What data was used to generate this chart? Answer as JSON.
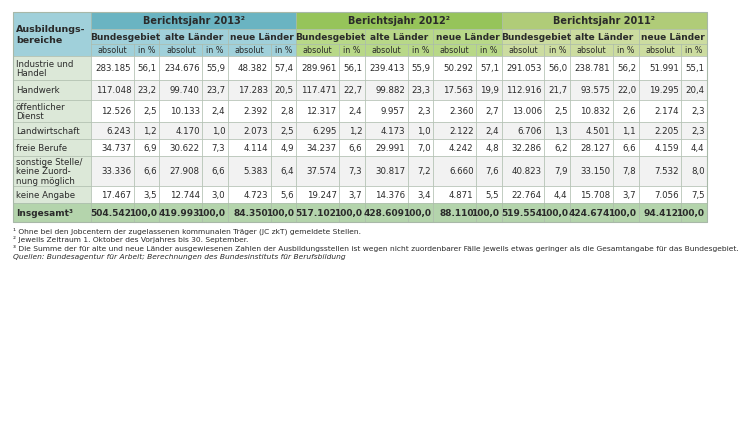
{
  "row_labels": [
    "Industrie und\nHandel",
    "Handwerk",
    "öffentlicher\nDienst",
    "Landwirtschaft",
    "freie Berufe",
    "sonstige Stelle/\nkeine Zuord-\nnung möglich",
    "keine Angabe",
    "Insgesamt³"
  ],
  "data": [
    [
      "283.185",
      "56,1",
      "234.676",
      "55,9",
      "48.382",
      "57,4",
      "289.961",
      "56,1",
      "239.413",
      "55,9",
      "50.292",
      "57,1",
      "291.053",
      "56,0",
      "238.781",
      "56,2",
      "51.991",
      "55,1"
    ],
    [
      "117.048",
      "23,2",
      "99.740",
      "23,7",
      "17.283",
      "20,5",
      "117.471",
      "22,7",
      "99.882",
      "23,3",
      "17.563",
      "19,9",
      "112.916",
      "21,7",
      "93.575",
      "22,0",
      "19.295",
      "20,4"
    ],
    [
      "12.526",
      "2,5",
      "10.133",
      "2,4",
      "2.392",
      "2,8",
      "12.317",
      "2,4",
      "9.957",
      "2,3",
      "2.360",
      "2,7",
      "13.006",
      "2,5",
      "10.832",
      "2,6",
      "2.174",
      "2,3"
    ],
    [
      "6.243",
      "1,2",
      "4.170",
      "1,0",
      "2.073",
      "2,5",
      "6.295",
      "1,2",
      "4.173",
      "1,0",
      "2.122",
      "2,4",
      "6.706",
      "1,3",
      "4.501",
      "1,1",
      "2.205",
      "2,3"
    ],
    [
      "34.737",
      "6,9",
      "30.622",
      "7,3",
      "4.114",
      "4,9",
      "34.237",
      "6,6",
      "29.991",
      "7,0",
      "4.242",
      "4,8",
      "32.286",
      "6,2",
      "28.127",
      "6,6",
      "4.159",
      "4,4"
    ],
    [
      "33.336",
      "6,6",
      "27.908",
      "6,6",
      "5.383",
      "6,4",
      "37.574",
      "7,3",
      "30.817",
      "7,2",
      "6.660",
      "7,6",
      "40.823",
      "7,9",
      "33.150",
      "7,8",
      "7.532",
      "8,0"
    ],
    [
      "17.467",
      "3,5",
      "12.744",
      "3,0",
      "4.723",
      "5,6",
      "19.247",
      "3,7",
      "14.376",
      "3,4",
      "4.871",
      "5,5",
      "22.764",
      "4,4",
      "15.708",
      "3,7",
      "7.056",
      "7,5"
    ],
    [
      "504.542",
      "100,0",
      "419.993",
      "100,0",
      "84.350",
      "100,0",
      "517.102",
      "100,0",
      "428.609",
      "100,0",
      "88.110",
      "100,0",
      "519.554",
      "100,0",
      "424.674",
      "100,0",
      "94.412",
      "100,0"
    ]
  ],
  "footnotes": [
    "¹ Ohne bei den Jobcentern der zugelassenen kommunalen Träger (JC zkT) gemeldete Stellen.",
    "² Jeweils Zeitraum 1. Oktober des Vorjahres bis 30. September.",
    "³ Die Summe der für alte und neue Länder ausgewiesenen Zahlen der Ausbildungsstellen ist wegen nicht zuordenbarer Fälle jeweils etwas geringer als die Gesamtangabe für das Bundesgebiet.",
    "Quellen: Bundesagentur für Arbeit; Berechnungen des Bundesinstituts für Berufsbildung"
  ],
  "c2013_dark": "#6ab4c2",
  "c2013_light": "#a0d0da",
  "c2012_dark": "#96c45a",
  "c2012_light": "#b8d888",
  "c2011_dark": "#b0cc78",
  "c2011_light": "#ccdca0",
  "row_label_bg": "#dce8d8",
  "total_bg": "#b4d4ac",
  "border_color": "#a8b8a8",
  "text_color": "#2a2a2a",
  "white": "#ffffff",
  "row_odd": "#ffffff",
  "row_even": "#f2f2f2"
}
